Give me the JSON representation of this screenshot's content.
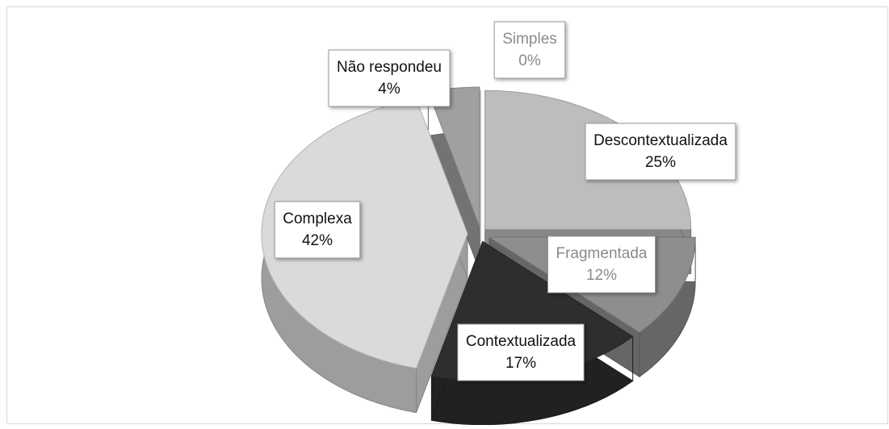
{
  "chart_data": {
    "type": "pie",
    "categories": [
      "Simples",
      "Descontextualizada",
      "Fragmentada",
      "Contextualizada",
      "Complexa",
      "Não respondeu"
    ],
    "values": [
      0,
      25,
      12,
      17,
      42,
      4
    ],
    "value_labels": [
      "0%",
      "25%",
      "12%",
      "17%",
      "42%",
      "4%"
    ],
    "colors": [
      "#eeeeee",
      "#bdbdbd",
      "#8e8e8e",
      "#2e2e2e",
      "#dadada",
      "#a0a0a0"
    ]
  }
}
